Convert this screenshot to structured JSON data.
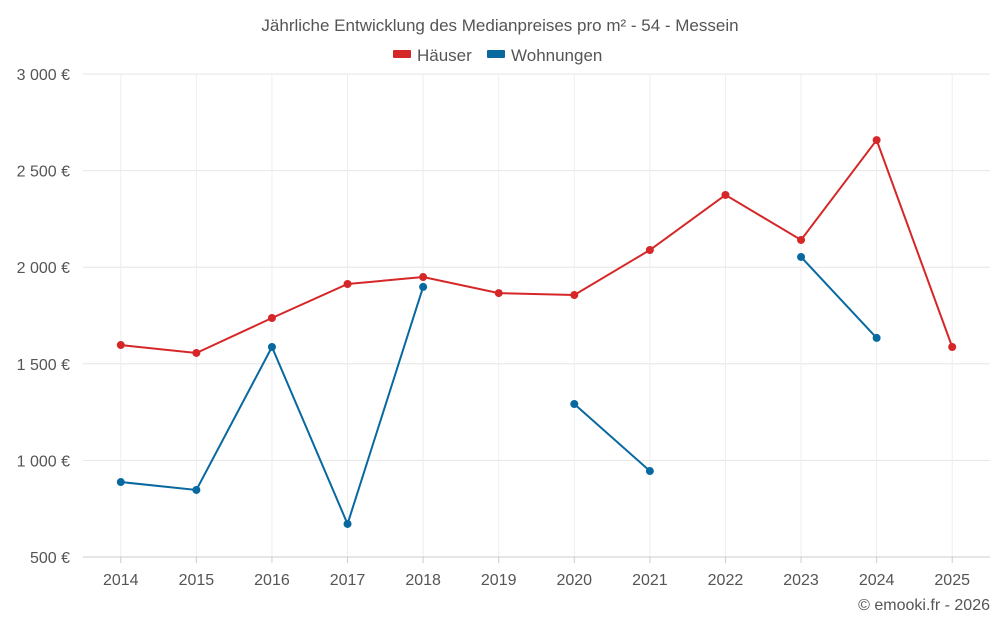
{
  "chart_data": {
    "type": "line",
    "title": "Jährliche Entwicklung des Medianpreises pro m² - 54 - Messein",
    "xlabel": "",
    "ylabel": "",
    "categories": [
      "2014",
      "2015",
      "2016",
      "2017",
      "2018",
      "2019",
      "2020",
      "2021",
      "2022",
      "2023",
      "2024",
      "2025"
    ],
    "ylim": [
      500,
      3000
    ],
    "yticks": [
      500,
      1000,
      1500,
      2000,
      2500,
      3000
    ],
    "ytick_labels": [
      "500 €",
      "1 000 €",
      "1 500 €",
      "2 000 €",
      "2 500 €",
      "3 000 €"
    ],
    "grid": true,
    "legend_position": "top-center",
    "series": [
      {
        "name": "Häuser",
        "color": "#d62728",
        "values": [
          1597,
          1556,
          1737,
          1913,
          1949,
          1866,
          1856,
          2089,
          2374,
          2141,
          2658,
          1587
        ]
      },
      {
        "name": "Wohnungen",
        "color": "#0868a0",
        "values": [
          888,
          847,
          1587,
          671,
          1898,
          null,
          1292,
          945,
          null,
          2053,
          1634,
          null
        ]
      }
    ],
    "footer": "© emooki.fr - 2026"
  }
}
